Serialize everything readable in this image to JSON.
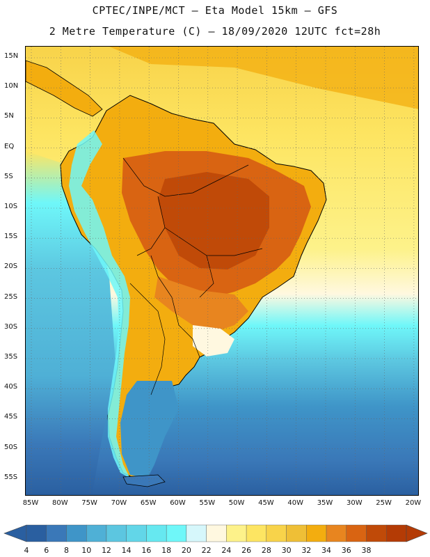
{
  "header": {
    "line1": "CPTEC/INPE/MCT –  Eta Model 15km – GFS",
    "line2": "2 Metre Temperature (C) – 18/09/2020 12UTC fct=28h"
  },
  "axes": {
    "lat_labels": [
      "15N",
      "10N",
      "5N",
      "EQ",
      "5S",
      "10S",
      "15S",
      "20S",
      "25S",
      "30S",
      "35S",
      "40S",
      "45S",
      "50S",
      "55S"
    ],
    "lon_labels": [
      "85W",
      "80W",
      "75W",
      "70W",
      "65W",
      "60W",
      "55W",
      "50W",
      "45W",
      "40W",
      "35W",
      "30W",
      "25W",
      "20W"
    ]
  },
  "legend": {
    "labels": [
      "4",
      "6",
      "8",
      "10",
      "12",
      "14",
      "16",
      "18",
      "20",
      "22",
      "24",
      "26",
      "28",
      "30",
      "32",
      "34",
      "36",
      "38"
    ],
    "colors": [
      "#2a5fa0",
      "#3a78b8",
      "#3f95c8",
      "#4fb0d6",
      "#5cc6e0",
      "#62d6e8",
      "#66e8f0",
      "#6ff7f9",
      "#d6f7fb",
      "#fff8e0",
      "#fdf28a",
      "#fde562",
      "#f8d34a",
      "#efbf36",
      "#f3ad0f",
      "#e8851f",
      "#d96412",
      "#c04a08",
      "#b43b05"
    ],
    "under_color": "#2a5fa0",
    "over_color": "#b43b05"
  }
}
